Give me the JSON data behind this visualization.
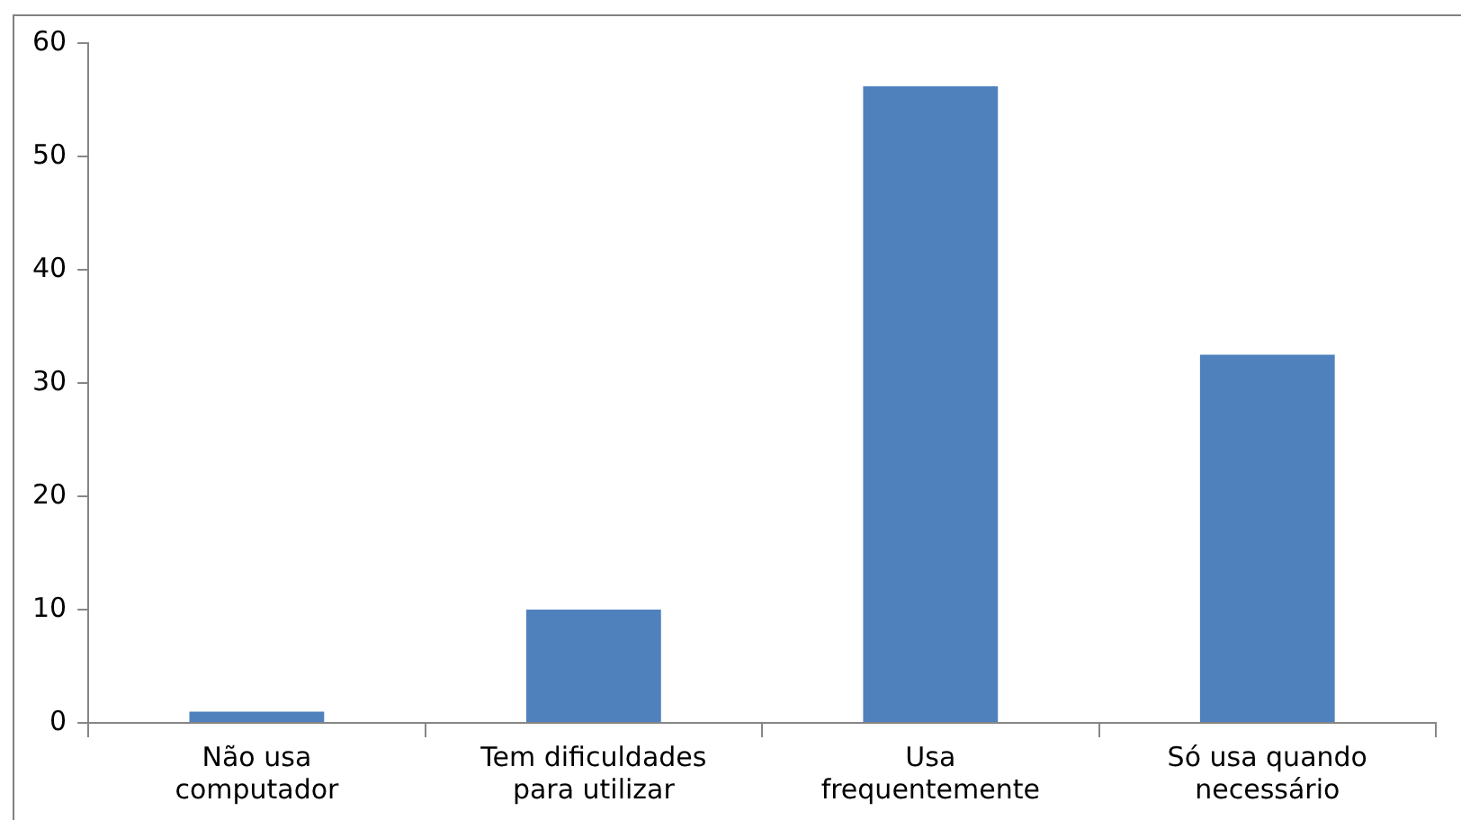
{
  "chart_data": {
    "type": "bar",
    "categories": [
      "Não usa computador",
      "Tem dificuldades para utilizar",
      "Usa frequentemente",
      "Só usa quando necessário"
    ],
    "values": [
      1,
      10,
      56.2,
      32.5
    ],
    "color": "#4f81bd",
    "ylim": [
      0,
      60
    ],
    "yticks": [
      0,
      10,
      20,
      30,
      40,
      50,
      60
    ],
    "grid": false
  }
}
